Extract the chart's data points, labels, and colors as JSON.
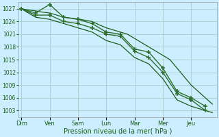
{
  "background_color": "#cceeff",
  "grid_color": "#aacccc",
  "line_dark": "#1a5c1a",
  "line_mid": "#2d6e2d",
  "xlabel": "Pression niveau de la mer( hPa )",
  "ylim": [
    1001.5,
    1028.5
  ],
  "yticks": [
    1003,
    1006,
    1009,
    1012,
    1015,
    1018,
    1021,
    1024,
    1027
  ],
  "day_labels": [
    "Dim",
    "Ven",
    "Sam",
    "Lun",
    "Mar",
    "Mer",
    "Jeu"
  ],
  "day_positions": [
    0,
    1,
    2,
    3,
    4,
    5,
    6
  ],
  "xlim": [
    -0.1,
    6.9
  ],
  "smooth_x": [
    0.0,
    0.25,
    0.5,
    0.75,
    1.0,
    1.25,
    1.5,
    1.75,
    2.0,
    2.25,
    2.5,
    2.75,
    3.0,
    3.25,
    3.5,
    3.75,
    4.0,
    4.25,
    4.5,
    4.75,
    5.0,
    5.25,
    5.5,
    5.75,
    6.0,
    6.25,
    6.5,
    6.75
  ],
  "smooth_y": [
    1027,
    1026.7,
    1026.5,
    1026.2,
    1026,
    1025.5,
    1025,
    1024.8,
    1024.6,
    1024.3,
    1024,
    1023.2,
    1022.5,
    1022,
    1021.5,
    1021,
    1020,
    1019,
    1018,
    1017,
    1016,
    1015,
    1013,
    1011,
    1009,
    1007.5,
    1006,
    1004.5
  ],
  "marker_x1": [
    0.0,
    0.5,
    1.0,
    1.5,
    2.0,
    2.5,
    3.0,
    3.5,
    4.0,
    4.5,
    5.0,
    5.5,
    6.0,
    6.5
  ],
  "marker_y1": [
    1027,
    1026,
    1028,
    1025,
    1024.5,
    1023.5,
    1021.5,
    1021,
    1017.5,
    1016.8,
    1013,
    1007.5,
    1006,
    1004
  ],
  "marker_x2": [
    0.0,
    0.5,
    1.0,
    1.5,
    2.0,
    2.5,
    3.0,
    3.5,
    4.0,
    4.5,
    5.0,
    5.5,
    6.0,
    6.5
  ],
  "marker_y2": [
    1027,
    1025.5,
    1025.5,
    1024,
    1023.5,
    1022.5,
    1021,
    1020.5,
    1017,
    1015.5,
    1012,
    1007,
    1005.5,
    1003
  ],
  "lower_x": [
    0.0,
    0.5,
    1.0,
    1.5,
    2.0,
    2.5,
    3.0,
    3.5,
    4.0,
    4.5,
    5.0,
    5.5,
    6.0,
    6.5,
    6.75
  ],
  "lower_y": [
    1027,
    1025,
    1024.5,
    1023.5,
    1022.5,
    1021.5,
    1019.5,
    1018.5,
    1015.5,
    1014,
    1010.5,
    1005.5,
    1004,
    1003,
    1002.5
  ]
}
